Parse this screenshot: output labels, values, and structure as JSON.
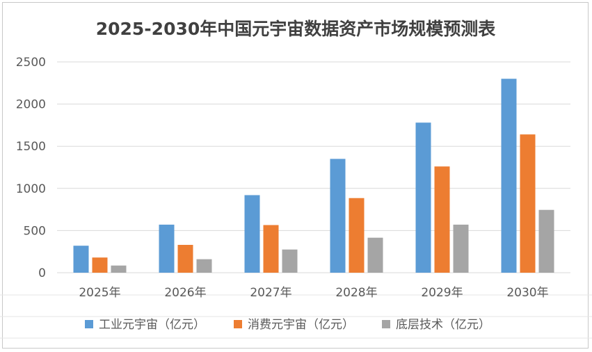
{
  "chart_data": {
    "type": "bar",
    "title": "2025-2030年中国元宇宙数据资产市场规模预测表",
    "categories": [
      "2025年",
      "2026年",
      "2027年",
      "2028年",
      "2029年",
      "2030年"
    ],
    "series": [
      {
        "name": "工业元宇宙（亿元）",
        "color": "#5B9BD5",
        "values": [
          320,
          570,
          920,
          1350,
          1780,
          2300
        ]
      },
      {
        "name": "消费元宇宙（亿元）",
        "color": "#ED7D31",
        "values": [
          180,
          330,
          565,
          885,
          1260,
          1640
        ]
      },
      {
        "name": "底层技术（亿元）",
        "color": "#A5A5A5",
        "values": [
          85,
          160,
          275,
          415,
          570,
          745
        ]
      }
    ],
    "ylim": [
      0,
      2500
    ],
    "yticks": [
      0,
      500,
      1000,
      1500,
      2000,
      2500
    ],
    "xlabel": "",
    "ylabel": "",
    "grid": true,
    "legend_position": "bottom"
  }
}
